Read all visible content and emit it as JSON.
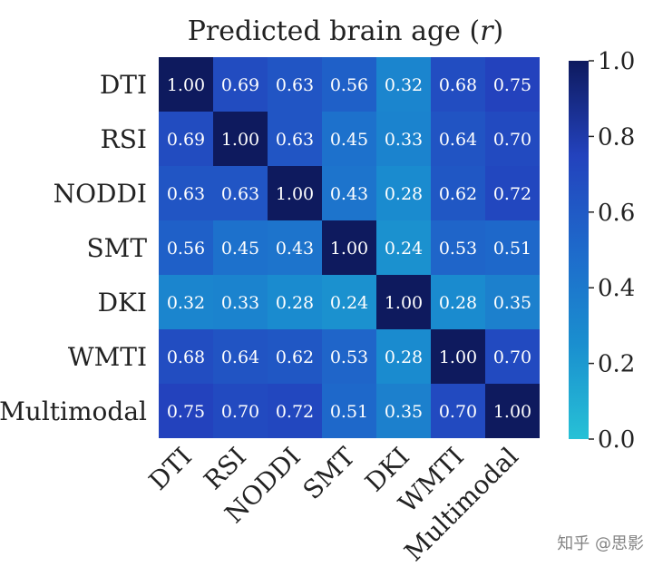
{
  "chart_data": {
    "type": "heatmap",
    "title": "Predicted brain age (r)",
    "title_main": "Predicted brain age",
    "title_var": "r",
    "row_labels": [
      "DTI",
      "RSI",
      "NODDI",
      "SMT",
      "DKI",
      "WMTI",
      "Multimodal"
    ],
    "col_labels": [
      "DTI",
      "RSI",
      "NODDI",
      "SMT",
      "DKI",
      "WMTI",
      "Multimodal"
    ],
    "values": [
      [
        1.0,
        0.69,
        0.63,
        0.56,
        0.32,
        0.68,
        0.75
      ],
      [
        0.69,
        1.0,
        0.63,
        0.45,
        0.33,
        0.64,
        0.7
      ],
      [
        0.63,
        0.63,
        1.0,
        0.43,
        0.28,
        0.62,
        0.72
      ],
      [
        0.56,
        0.45,
        0.43,
        1.0,
        0.24,
        0.53,
        0.51
      ],
      [
        0.32,
        0.33,
        0.28,
        0.24,
        1.0,
        0.28,
        0.35
      ],
      [
        0.68,
        0.64,
        0.62,
        0.53,
        0.28,
        1.0,
        0.7
      ],
      [
        0.75,
        0.7,
        0.72,
        0.51,
        0.35,
        0.7,
        1.0
      ]
    ],
    "value_format": "2-decimals",
    "colorbar": {
      "range": [
        0.0,
        1.0
      ],
      "ticks": [
        "0.0",
        "0.2",
        "0.4",
        "0.6",
        "0.8",
        "1.0"
      ],
      "colors": [
        "#27c1d6",
        "#1a8fcf",
        "#1e6acb",
        "#2342bd",
        "#0e1a5e"
      ]
    }
  },
  "watermark": "知乎 @思影"
}
